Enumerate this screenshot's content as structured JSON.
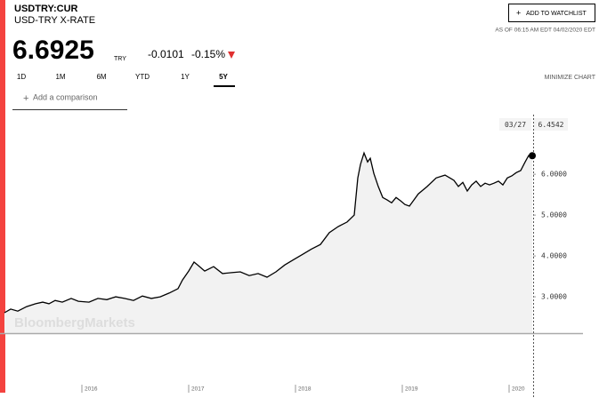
{
  "header": {
    "symbol": "USDTRY:CUR",
    "name": "USD-TRY X-RATE",
    "price": "6.6925",
    "currency": "TRY",
    "change": "-0.0101",
    "change_pct": "-0.15%",
    "watchlist_button": "ADD TO WATCHLIST",
    "timestamp": "AS OF 06:15 AM EDT 04/02/2020 EDT"
  },
  "controls": {
    "ranges": [
      "1D",
      "1M",
      "6M",
      "YTD",
      "1Y",
      "5Y"
    ],
    "minimize": "MINIMIZE CHART",
    "comparison_placeholder": "Add a comparison"
  },
  "watermark": "BloombergMarkets",
  "chart_data": {
    "type": "line",
    "color": "#000000",
    "fill": "#f2f2f2",
    "x": [
      2015.275,
      2015.333,
      2015.4,
      2015.483,
      2015.567,
      2015.633,
      2015.692,
      2015.75,
      2015.817,
      2015.9,
      2015.967,
      2016.067,
      2016.15,
      2016.233,
      2016.317,
      2016.4,
      2016.483,
      2016.567,
      2016.65,
      2016.733,
      2016.817,
      2016.9,
      2016.942,
      2017.0,
      2017.05,
      2017.083,
      2017.15,
      2017.233,
      2017.317,
      2017.4,
      2017.483,
      2017.567,
      2017.65,
      2017.733,
      2017.817,
      2017.9,
      2017.983,
      2018.067,
      2018.15,
      2018.233,
      2018.317,
      2018.4,
      2018.483,
      2018.55,
      2018.583,
      2018.608,
      2018.642,
      2018.675,
      2018.7,
      2018.733,
      2018.775,
      2018.817,
      2018.858,
      2018.9,
      2018.942,
      2018.983,
      2019.025,
      2019.067,
      2019.108,
      2019.15,
      2019.233,
      2019.317,
      2019.4,
      2019.483,
      2019.525,
      2019.567,
      2019.608,
      2019.65,
      2019.692,
      2019.733,
      2019.775,
      2019.817,
      2019.858,
      2019.9,
      2019.942,
      2019.983,
      2020.025,
      2020.067,
      2020.108,
      2020.15,
      2020.183,
      2020.217
    ],
    "values": [
      2.61,
      2.7,
      2.65,
      2.76,
      2.83,
      2.87,
      2.83,
      2.91,
      2.87,
      2.96,
      2.89,
      2.87,
      2.96,
      2.93,
      3.0,
      2.96,
      2.91,
      3.02,
      2.96,
      3.0,
      3.09,
      3.2,
      3.41,
      3.63,
      3.85,
      3.78,
      3.63,
      3.74,
      3.57,
      3.59,
      3.61,
      3.52,
      3.57,
      3.48,
      3.61,
      3.78,
      3.91,
      4.04,
      4.17,
      4.28,
      4.57,
      4.72,
      4.83,
      5.0,
      5.91,
      6.24,
      6.52,
      6.3,
      6.39,
      6.02,
      5.7,
      5.43,
      5.37,
      5.3,
      5.43,
      5.35,
      5.26,
      5.22,
      5.37,
      5.52,
      5.7,
      5.91,
      5.98,
      5.85,
      5.7,
      5.8,
      5.59,
      5.74,
      5.83,
      5.7,
      5.78,
      5.74,
      5.78,
      5.83,
      5.74,
      5.91,
      5.96,
      6.04,
      6.09,
      6.3,
      6.46,
      6.4542
    ],
    "tooltip_date": "03/27",
    "xlim": [
      2015.275,
      2020.225
    ],
    "xticks": [
      2016,
      2017,
      2018,
      2019,
      2020
    ],
    "ylim": [
      2.11,
      7.46
    ],
    "yticks": [
      {
        "value": 3,
        "label": "3.0000"
      },
      {
        "value": 4,
        "label": "4.0000"
      },
      {
        "value": 5,
        "label": "5.0000"
      },
      {
        "value": 6,
        "label": "6.0000"
      }
    ]
  }
}
